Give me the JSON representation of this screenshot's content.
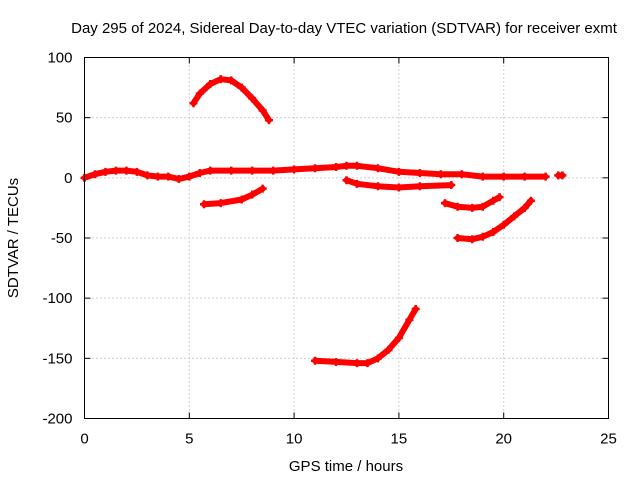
{
  "chart_data": {
    "type": "line",
    "title": "Day 295 of 2024, Sidereal Day-to-day VTEC variation (SDTVAR) for receiver exmt",
    "xlabel": "GPS time / hours",
    "ylabel": "SDTVAR / TECUs",
    "xlim": [
      0,
      25
    ],
    "ylim": [
      -200,
      100
    ],
    "xticks": [
      0,
      5,
      10,
      15,
      20,
      25
    ],
    "yticks": [
      -200,
      -150,
      -100,
      -50,
      0,
      50,
      100
    ],
    "grid": true,
    "color": "#ff0000",
    "marker": "plus",
    "series": [
      {
        "name": "arc-main",
        "points": [
          [
            0,
            0
          ],
          [
            0.5,
            3
          ],
          [
            1,
            5
          ],
          [
            1.5,
            6
          ],
          [
            2,
            6
          ],
          [
            2.5,
            5
          ],
          [
            3,
            2
          ],
          [
            3.5,
            1
          ],
          [
            4,
            1
          ],
          [
            4.5,
            -1
          ],
          [
            5,
            1
          ],
          [
            5.5,
            4
          ],
          [
            6,
            6
          ],
          [
            7,
            6
          ],
          [
            8,
            6
          ],
          [
            9,
            6
          ],
          [
            10,
            7
          ],
          [
            11,
            8
          ],
          [
            12,
            9
          ],
          [
            12.5,
            10
          ],
          [
            13,
            10
          ],
          [
            14,
            8
          ],
          [
            15,
            5
          ],
          [
            16,
            4
          ],
          [
            17,
            3
          ],
          [
            18,
            3
          ],
          [
            19,
            1
          ],
          [
            20,
            1
          ],
          [
            21,
            1
          ],
          [
            22,
            1
          ]
        ]
      },
      {
        "name": "arc-high",
        "points": [
          [
            5.2,
            62
          ],
          [
            5.5,
            70
          ],
          [
            6,
            78
          ],
          [
            6.5,
            82
          ],
          [
            7,
            81
          ],
          [
            7.5,
            75
          ],
          [
            8,
            66
          ],
          [
            8.5,
            56
          ],
          [
            8.8,
            48
          ]
        ]
      },
      {
        "name": "arc-neg20",
        "points": [
          [
            5.7,
            -22
          ],
          [
            6.5,
            -21
          ],
          [
            7.5,
            -18
          ],
          [
            8,
            -14
          ],
          [
            8.5,
            -9
          ]
        ]
      },
      {
        "name": "arc-dip-a",
        "points": [
          [
            12.5,
            -2
          ],
          [
            13,
            -5
          ],
          [
            14,
            -7
          ],
          [
            15,
            -8
          ],
          [
            16,
            -7
          ],
          [
            17.5,
            -6
          ]
        ]
      },
      {
        "name": "arc-bowl",
        "points": [
          [
            11,
            -152
          ],
          [
            12,
            -153
          ],
          [
            13,
            -154
          ],
          [
            13.5,
            -154
          ],
          [
            14,
            -150
          ],
          [
            14.5,
            -143
          ],
          [
            15,
            -133
          ],
          [
            15.5,
            -118
          ],
          [
            15.8,
            -109
          ]
        ]
      },
      {
        "name": "arc-dip-b",
        "points": [
          [
            17.2,
            -21
          ],
          [
            17.8,
            -24
          ],
          [
            18.5,
            -25
          ],
          [
            19,
            -24
          ],
          [
            19.5,
            -19
          ],
          [
            19.8,
            -16
          ]
        ]
      },
      {
        "name": "arc-dip-c",
        "points": [
          [
            17.8,
            -50
          ],
          [
            18.5,
            -51
          ],
          [
            19,
            -49
          ],
          [
            19.5,
            -45
          ],
          [
            20,
            -39
          ],
          [
            20.5,
            -32
          ],
          [
            21,
            -25
          ],
          [
            21.3,
            -19
          ]
        ]
      },
      {
        "name": "arc-end",
        "points": [
          [
            22.6,
            2
          ],
          [
            22.8,
            2
          ]
        ]
      }
    ]
  }
}
